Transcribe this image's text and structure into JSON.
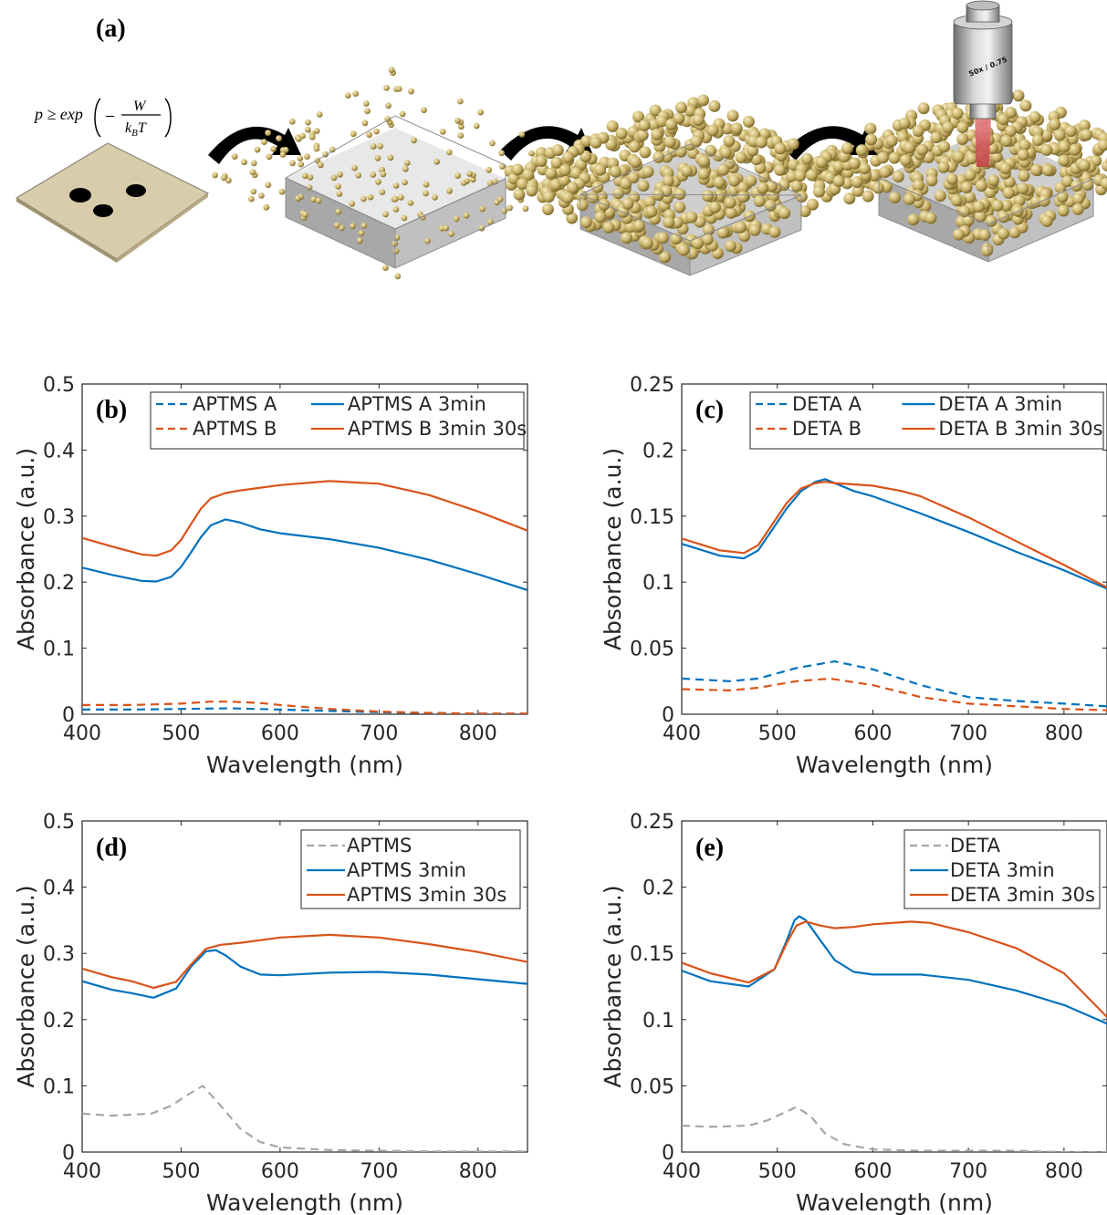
{
  "panel_a": {
    "label": "(a)",
    "equation": {
      "lhs": "p ≥ exp",
      "minus": "−",
      "numerator": "W",
      "denominator_k": "k",
      "denominator_sub": "B",
      "denominator_T": "T"
    },
    "objective_label": "50x / 0.75"
  },
  "chart_data": [
    {
      "id": "b",
      "label": "(b)",
      "type": "line",
      "xlabel": "Wavelength (nm)",
      "ylabel": "Absorbance (a.u.)",
      "xlim": [
        400,
        850
      ],
      "ylim": [
        0,
        0.5
      ],
      "xticks": [
        400,
        500,
        600,
        700,
        800
      ],
      "yticks": [
        0,
        0.1,
        0.2,
        0.3,
        0.4,
        0.5
      ],
      "ytick_labels": [
        "0",
        "0.1",
        "0.2",
        "0.3",
        "0.4",
        "0.5"
      ],
      "legend_layout": "two-column",
      "legend_placement": "top",
      "series": [
        {
          "name": "APTMS A",
          "color": "#0072BD",
          "dash": true,
          "x": [
            400,
            450,
            500,
            550,
            600,
            650,
            700,
            750,
            800,
            850
          ],
          "y": [
            0.007,
            0.007,
            0.008,
            0.009,
            0.007,
            0.005,
            0.003,
            0.002,
            0.001,
            0.001
          ]
        },
        {
          "name": "APTMS B",
          "color": "#D95319",
          "dash": true,
          "x": [
            400,
            450,
            500,
            530,
            550,
            580,
            600,
            650,
            700,
            750,
            800,
            850
          ],
          "y": [
            0.014,
            0.014,
            0.016,
            0.019,
            0.019,
            0.017,
            0.014,
            0.008,
            0.004,
            0.002,
            0.001,
            0.001
          ]
        },
        {
          "name": "APTMS A 3min",
          "color": "#0072BD",
          "dash": false,
          "x": [
            400,
            430,
            460,
            475,
            490,
            500,
            510,
            520,
            530,
            545,
            560,
            580,
            600,
            650,
            700,
            750,
            800,
            850
          ],
          "y": [
            0.222,
            0.211,
            0.202,
            0.201,
            0.208,
            0.223,
            0.245,
            0.268,
            0.286,
            0.295,
            0.29,
            0.28,
            0.274,
            0.265,
            0.252,
            0.234,
            0.212,
            0.188
          ]
        },
        {
          "name": "APTMS B 3min 30s",
          "color": "#D95319",
          "dash": false,
          "x": [
            400,
            430,
            460,
            475,
            490,
            500,
            510,
            520,
            530,
            545,
            560,
            600,
            650,
            700,
            750,
            800,
            850
          ],
          "y": [
            0.267,
            0.254,
            0.242,
            0.24,
            0.248,
            0.264,
            0.288,
            0.311,
            0.327,
            0.335,
            0.339,
            0.347,
            0.353,
            0.349,
            0.332,
            0.307,
            0.278
          ]
        }
      ]
    },
    {
      "id": "c",
      "label": "(c)",
      "type": "line",
      "xlabel": "Wavelength (nm)",
      "ylabel": "Absorbance (a.u.)",
      "xlim": [
        400,
        845
      ],
      "ylim": [
        0,
        0.25
      ],
      "xticks": [
        400,
        500,
        600,
        700,
        800
      ],
      "yticks": [
        0,
        0.05,
        0.1,
        0.15,
        0.2,
        0.25
      ],
      "ytick_labels": [
        "0",
        "0.05",
        "0.1",
        "0.15",
        "0.2",
        "0.25"
      ],
      "legend_layout": "two-column",
      "legend_placement": "top",
      "series": [
        {
          "name": "DETA A",
          "color": "#0072BD",
          "dash": true,
          "x": [
            400,
            450,
            480,
            520,
            560,
            600,
            650,
            700,
            750,
            800,
            845
          ],
          "y": [
            0.027,
            0.025,
            0.027,
            0.035,
            0.04,
            0.034,
            0.022,
            0.013,
            0.01,
            0.008,
            0.006
          ]
        },
        {
          "name": "DETA B",
          "color": "#D95319",
          "dash": true,
          "x": [
            400,
            450,
            480,
            520,
            555,
            600,
            650,
            700,
            750,
            800,
            845
          ],
          "y": [
            0.019,
            0.018,
            0.02,
            0.025,
            0.027,
            0.022,
            0.013,
            0.008,
            0.006,
            0.004,
            0.003
          ]
        },
        {
          "name": "DETA A 3min",
          "color": "#0072BD",
          "dash": false,
          "x": [
            400,
            440,
            465,
            480,
            495,
            510,
            525,
            540,
            550,
            560,
            580,
            600,
            650,
            700,
            750,
            800,
            845
          ],
          "y": [
            0.129,
            0.12,
            0.118,
            0.124,
            0.14,
            0.156,
            0.169,
            0.176,
            0.178,
            0.175,
            0.169,
            0.165,
            0.152,
            0.138,
            0.123,
            0.109,
            0.095
          ]
        },
        {
          "name": "DETA B 3min 30s",
          "color": "#D95319",
          "dash": false,
          "x": [
            400,
            440,
            465,
            480,
            495,
            510,
            525,
            540,
            550,
            560,
            580,
            600,
            630,
            650,
            700,
            750,
            800,
            845
          ],
          "y": [
            0.133,
            0.124,
            0.122,
            0.128,
            0.144,
            0.16,
            0.171,
            0.175,
            0.176,
            0.175,
            0.174,
            0.173,
            0.169,
            0.165,
            0.149,
            0.131,
            0.113,
            0.096
          ]
        }
      ]
    },
    {
      "id": "d",
      "label": "(d)",
      "type": "line",
      "xlabel": "Wavelength (nm)",
      "ylabel": "Absorbance (a.u.)",
      "xlim": [
        400,
        850
      ],
      "ylim": [
        0,
        0.5
      ],
      "xticks": [
        400,
        500,
        600,
        700,
        800
      ],
      "yticks": [
        0,
        0.1,
        0.2,
        0.3,
        0.4,
        0.5
      ],
      "ytick_labels": [
        "0",
        "0.1",
        "0.2",
        "0.3",
        "0.4",
        "0.5"
      ],
      "legend_layout": "one-column",
      "legend_placement": "top-right",
      "series": [
        {
          "name": "APTMS",
          "color": "#A6A6A6",
          "dash": true,
          "x": [
            400,
            430,
            470,
            490,
            505,
            522,
            540,
            560,
            580,
            600,
            650,
            700,
            750,
            800,
            850
          ],
          "y": [
            0.058,
            0.055,
            0.058,
            0.07,
            0.085,
            0.1,
            0.07,
            0.035,
            0.015,
            0.007,
            0.003,
            0.002,
            0.001,
            0.001,
            0.001
          ]
        },
        {
          "name": "APTMS 3min",
          "color": "#0072BD",
          "dash": false,
          "x": [
            400,
            430,
            450,
            472,
            495,
            510,
            525,
            535,
            545,
            560,
            580,
            600,
            650,
            700,
            750,
            800,
            850
          ],
          "y": [
            0.258,
            0.245,
            0.24,
            0.233,
            0.247,
            0.28,
            0.303,
            0.305,
            0.297,
            0.28,
            0.268,
            0.267,
            0.271,
            0.272,
            0.268,
            0.261,
            0.254
          ]
        },
        {
          "name": "APTMS 3min 30s",
          "color": "#D95319",
          "dash": false,
          "x": [
            400,
            430,
            450,
            472,
            495,
            510,
            525,
            540,
            560,
            600,
            650,
            700,
            750,
            800,
            850
          ],
          "y": [
            0.277,
            0.264,
            0.258,
            0.248,
            0.257,
            0.283,
            0.307,
            0.313,
            0.316,
            0.324,
            0.328,
            0.324,
            0.314,
            0.302,
            0.287
          ]
        }
      ]
    },
    {
      "id": "e",
      "label": "(e)",
      "type": "line",
      "xlabel": "Wavelength (nm)",
      "ylabel": "Absorbance (a.u.)",
      "xlim": [
        400,
        845
      ],
      "ylim": [
        0,
        0.25
      ],
      "xticks": [
        400,
        500,
        600,
        700,
        800
      ],
      "yticks": [
        0,
        0.05,
        0.1,
        0.15,
        0.2,
        0.25
      ],
      "ytick_labels": [
        "0",
        "0.05",
        "0.1",
        "0.15",
        "0.2",
        "0.25"
      ],
      "legend_layout": "one-column",
      "legend_placement": "top-right",
      "series": [
        {
          "name": "DETA",
          "color": "#A6A6A6",
          "dash": true,
          "x": [
            400,
            430,
            470,
            490,
            505,
            520,
            535,
            550,
            570,
            600,
            650,
            700,
            750,
            800,
            845
          ],
          "y": [
            0.02,
            0.019,
            0.02,
            0.024,
            0.029,
            0.034,
            0.027,
            0.014,
            0.006,
            0.002,
            0.001,
            0.001,
            0.001,
            0.0,
            0.0
          ]
        },
        {
          "name": "DETA 3min",
          "color": "#0072BD",
          "dash": false,
          "x": [
            400,
            430,
            470,
            497,
            510,
            518,
            523,
            530,
            545,
            560,
            580,
            600,
            650,
            700,
            750,
            800,
            845
          ],
          "y": [
            0.137,
            0.129,
            0.125,
            0.138,
            0.16,
            0.175,
            0.178,
            0.175,
            0.16,
            0.145,
            0.136,
            0.134,
            0.134,
            0.13,
            0.122,
            0.111,
            0.097
          ]
        },
        {
          "name": "DETA 3min 30s",
          "color": "#D95319",
          "dash": false,
          "x": [
            400,
            430,
            470,
            497,
            510,
            520,
            530,
            545,
            560,
            580,
            600,
            640,
            660,
            700,
            750,
            800,
            845
          ],
          "y": [
            0.143,
            0.135,
            0.128,
            0.138,
            0.158,
            0.171,
            0.174,
            0.171,
            0.169,
            0.17,
            0.172,
            0.174,
            0.173,
            0.166,
            0.154,
            0.135,
            0.102
          ]
        }
      ]
    }
  ]
}
